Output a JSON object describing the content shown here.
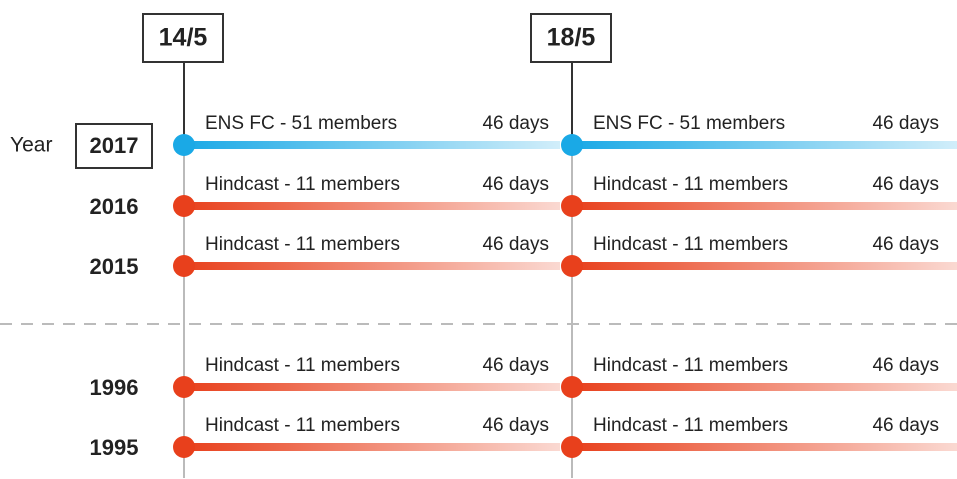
{
  "dates": [
    "14/5",
    "18/5"
  ],
  "year_header": "Year",
  "rows": [
    {
      "year": "2017",
      "color": "#1aa9e6",
      "segments": [
        {
          "label": "ENS FC - 51 members",
          "duration": "46 days"
        },
        {
          "label": "ENS FC - 51 members",
          "duration": "46 days"
        }
      ]
    },
    {
      "year": "2016",
      "color": "#e8401c",
      "segments": [
        {
          "label": "Hindcast - 11 members",
          "duration": "46 days"
        },
        {
          "label": "Hindcast - 11 members",
          "duration": "46 days"
        }
      ]
    },
    {
      "year": "2015",
      "color": "#e8401c",
      "segments": [
        {
          "label": "Hindcast - 11 members",
          "duration": "46 days"
        },
        {
          "label": "Hindcast - 11 members",
          "duration": "46 days"
        }
      ]
    },
    {
      "year": "1996",
      "color": "#e8401c",
      "segments": [
        {
          "label": "Hindcast - 11 members",
          "duration": "46 days"
        },
        {
          "label": "Hindcast - 11 members",
          "duration": "46 days"
        }
      ]
    },
    {
      "year": "1995",
      "color": "#e8401c",
      "segments": [
        {
          "label": "Hindcast - 11 members",
          "duration": "46 days"
        },
        {
          "label": "Hindcast - 11 members",
          "duration": "46 days"
        }
      ]
    }
  ]
}
